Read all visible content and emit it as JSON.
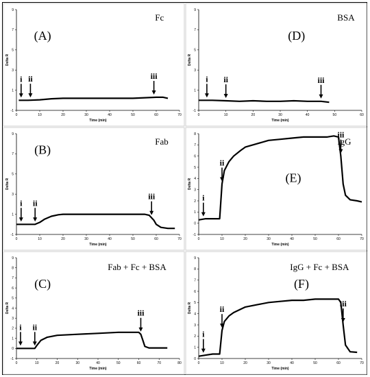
{
  "chart_data": [
    {
      "id": "A",
      "type": "line",
      "label": "(A)",
      "title": "Fc",
      "xlabel": "Time (min)",
      "ylabel": "Delta R",
      "xlim": [
        0,
        70
      ],
      "ylim": [
        -1,
        9
      ],
      "xticks": [
        0,
        10,
        20,
        30,
        40,
        50,
        60,
        70
      ],
      "yticks": [
        -1,
        1,
        3,
        5,
        7,
        9
      ],
      "series": [
        {
          "x": [
            1,
            5,
            10,
            15,
            20,
            30,
            40,
            50,
            55,
            60,
            63,
            65
          ],
          "y": [
            0,
            0,
            0.05,
            0.15,
            0.2,
            0.2,
            0.2,
            0.2,
            0.25,
            0.3,
            0.3,
            0.2
          ]
        }
      ],
      "markers": [
        {
          "label": "i",
          "x": 2
        },
        {
          "label": "ii",
          "x": 6
        },
        {
          "label": "iii",
          "x": 59
        }
      ]
    },
    {
      "id": "D",
      "type": "line",
      "label": "(D)",
      "title": "BSA",
      "xlabel": "Time (min)",
      "ylabel": "Delta R",
      "xlim": [
        0,
        60
      ],
      "ylim": [
        -1,
        9
      ],
      "xticks": [
        0,
        10,
        20,
        30,
        40,
        50,
        60
      ],
      "yticks": [
        -1,
        1,
        3,
        5,
        7,
        9
      ],
      "series": [
        {
          "x": [
            0,
            5,
            10,
            15,
            20,
            25,
            30,
            35,
            40,
            45,
            48
          ],
          "y": [
            0,
            0,
            -0.05,
            -0.1,
            -0.05,
            -0.1,
            -0.1,
            -0.05,
            -0.1,
            -0.1,
            -0.2
          ]
        }
      ],
      "markers": [
        {
          "label": "i",
          "x": 3
        },
        {
          "label": "ii",
          "x": 10
        },
        {
          "label": "iii",
          "x": 45
        }
      ]
    },
    {
      "id": "B",
      "type": "line",
      "label": "(B)",
      "title": "Fab",
      "xlabel": "Time (min)",
      "ylabel": "Delta R",
      "xlim": [
        0,
        70
      ],
      "ylim": [
        -1,
        9
      ],
      "xticks": [
        0,
        10,
        20,
        30,
        40,
        50,
        60,
        70
      ],
      "yticks": [
        -1,
        1,
        3,
        5,
        7,
        9
      ],
      "series": [
        {
          "x": [
            0,
            5,
            8,
            10,
            12,
            15,
            18,
            20,
            30,
            40,
            50,
            55,
            57,
            59,
            60,
            62,
            65,
            68
          ],
          "y": [
            0,
            0,
            0,
            0.2,
            0.5,
            0.8,
            0.95,
            1.0,
            1.0,
            1.0,
            1.0,
            1.0,
            0.9,
            0.4,
            0,
            -0.3,
            -0.4,
            -0.4
          ]
        }
      ],
      "markers": [
        {
          "label": "i",
          "x": 2
        },
        {
          "label": "ii",
          "x": 8
        },
        {
          "label": "iii",
          "x": 58
        }
      ]
    },
    {
      "id": "E",
      "type": "line",
      "label": "(E)",
      "title": "IgG",
      "xlabel": "Time (min)",
      "ylabel": "Delta R",
      "xlim": [
        0,
        70
      ],
      "ylim": [
        -1,
        8
      ],
      "xticks": [
        0,
        10,
        20,
        30,
        40,
        50,
        60,
        70
      ],
      "yticks": [
        -1,
        0,
        1,
        2,
        3,
        4,
        5,
        6,
        7,
        8
      ],
      "series": [
        {
          "x": [
            0,
            3,
            6,
            9,
            10,
            11,
            13,
            15,
            18,
            20,
            25,
            30,
            35,
            40,
            45,
            50,
            55,
            58,
            60,
            61,
            62,
            63,
            65,
            68,
            70
          ],
          "y": [
            0.3,
            0.4,
            0.4,
            0.4,
            3.5,
            4.7,
            5.5,
            6.0,
            6.5,
            6.8,
            7.1,
            7.4,
            7.5,
            7.6,
            7.7,
            7.7,
            7.7,
            7.8,
            7.7,
            6.0,
            3.5,
            2.5,
            2.1,
            2.0,
            1.9
          ]
        }
      ],
      "markers": [
        {
          "label": "i",
          "x": 2
        },
        {
          "label": "ii",
          "x": 10
        },
        {
          "label": "iii",
          "x": 61
        }
      ]
    },
    {
      "id": "C",
      "type": "line",
      "label": "(C)",
      "title": "Fab + Fc + BSA",
      "xlabel": "Time (min)",
      "ylabel": "Delta R",
      "xlim": [
        0,
        80
      ],
      "ylim": [
        -1,
        9
      ],
      "xticks": [
        0,
        10,
        20,
        30,
        40,
        50,
        60,
        70,
        80
      ],
      "yticks": [
        -1,
        0,
        1,
        2,
        3,
        4,
        5,
        6,
        7,
        8,
        9
      ],
      "series": [
        {
          "x": [
            0,
            5,
            9,
            10,
            12,
            15,
            20,
            30,
            40,
            50,
            55,
            60,
            61,
            62,
            63,
            65,
            70,
            74
          ],
          "y": [
            0,
            0,
            0,
            0.3,
            0.8,
            1.1,
            1.3,
            1.4,
            1.5,
            1.6,
            1.6,
            1.6,
            1.4,
            0.8,
            0.2,
            0.05,
            0.05,
            0.05
          ]
        }
      ],
      "markers": [
        {
          "label": "i",
          "x": 2
        },
        {
          "label": "ii",
          "x": 9
        },
        {
          "label": "iii",
          "x": 61
        }
      ]
    },
    {
      "id": "F",
      "type": "line",
      "label": "(F)",
      "title": "IgG + Fc + BSA",
      "xlabel": "Time (min)",
      "ylabel": "Delta R",
      "xlim": [
        0,
        70
      ],
      "ylim": [
        0,
        9
      ],
      "xticks": [
        0,
        10,
        20,
        30,
        40,
        50,
        60,
        70
      ],
      "yticks": [
        0,
        1,
        2,
        3,
        4,
        5,
        6,
        7,
        8,
        9
      ],
      "series": [
        {
          "x": [
            0,
            3,
            6,
            9,
            10,
            11,
            13,
            15,
            18,
            20,
            25,
            30,
            35,
            40,
            45,
            50,
            55,
            60,
            61,
            62,
            63,
            65,
            68
          ],
          "y": [
            0.2,
            0.3,
            0.4,
            0.4,
            2.5,
            3.3,
            3.8,
            4.1,
            4.4,
            4.6,
            4.8,
            5.0,
            5.1,
            5.2,
            5.2,
            5.3,
            5.3,
            5.3,
            5.0,
            3.0,
            1.2,
            0.6,
            0.55
          ]
        }
      ],
      "markers": [
        {
          "label": "i",
          "x": 2
        },
        {
          "label": "ii",
          "x": 10
        },
        {
          "label": "iii",
          "x": 62
        }
      ]
    }
  ]
}
